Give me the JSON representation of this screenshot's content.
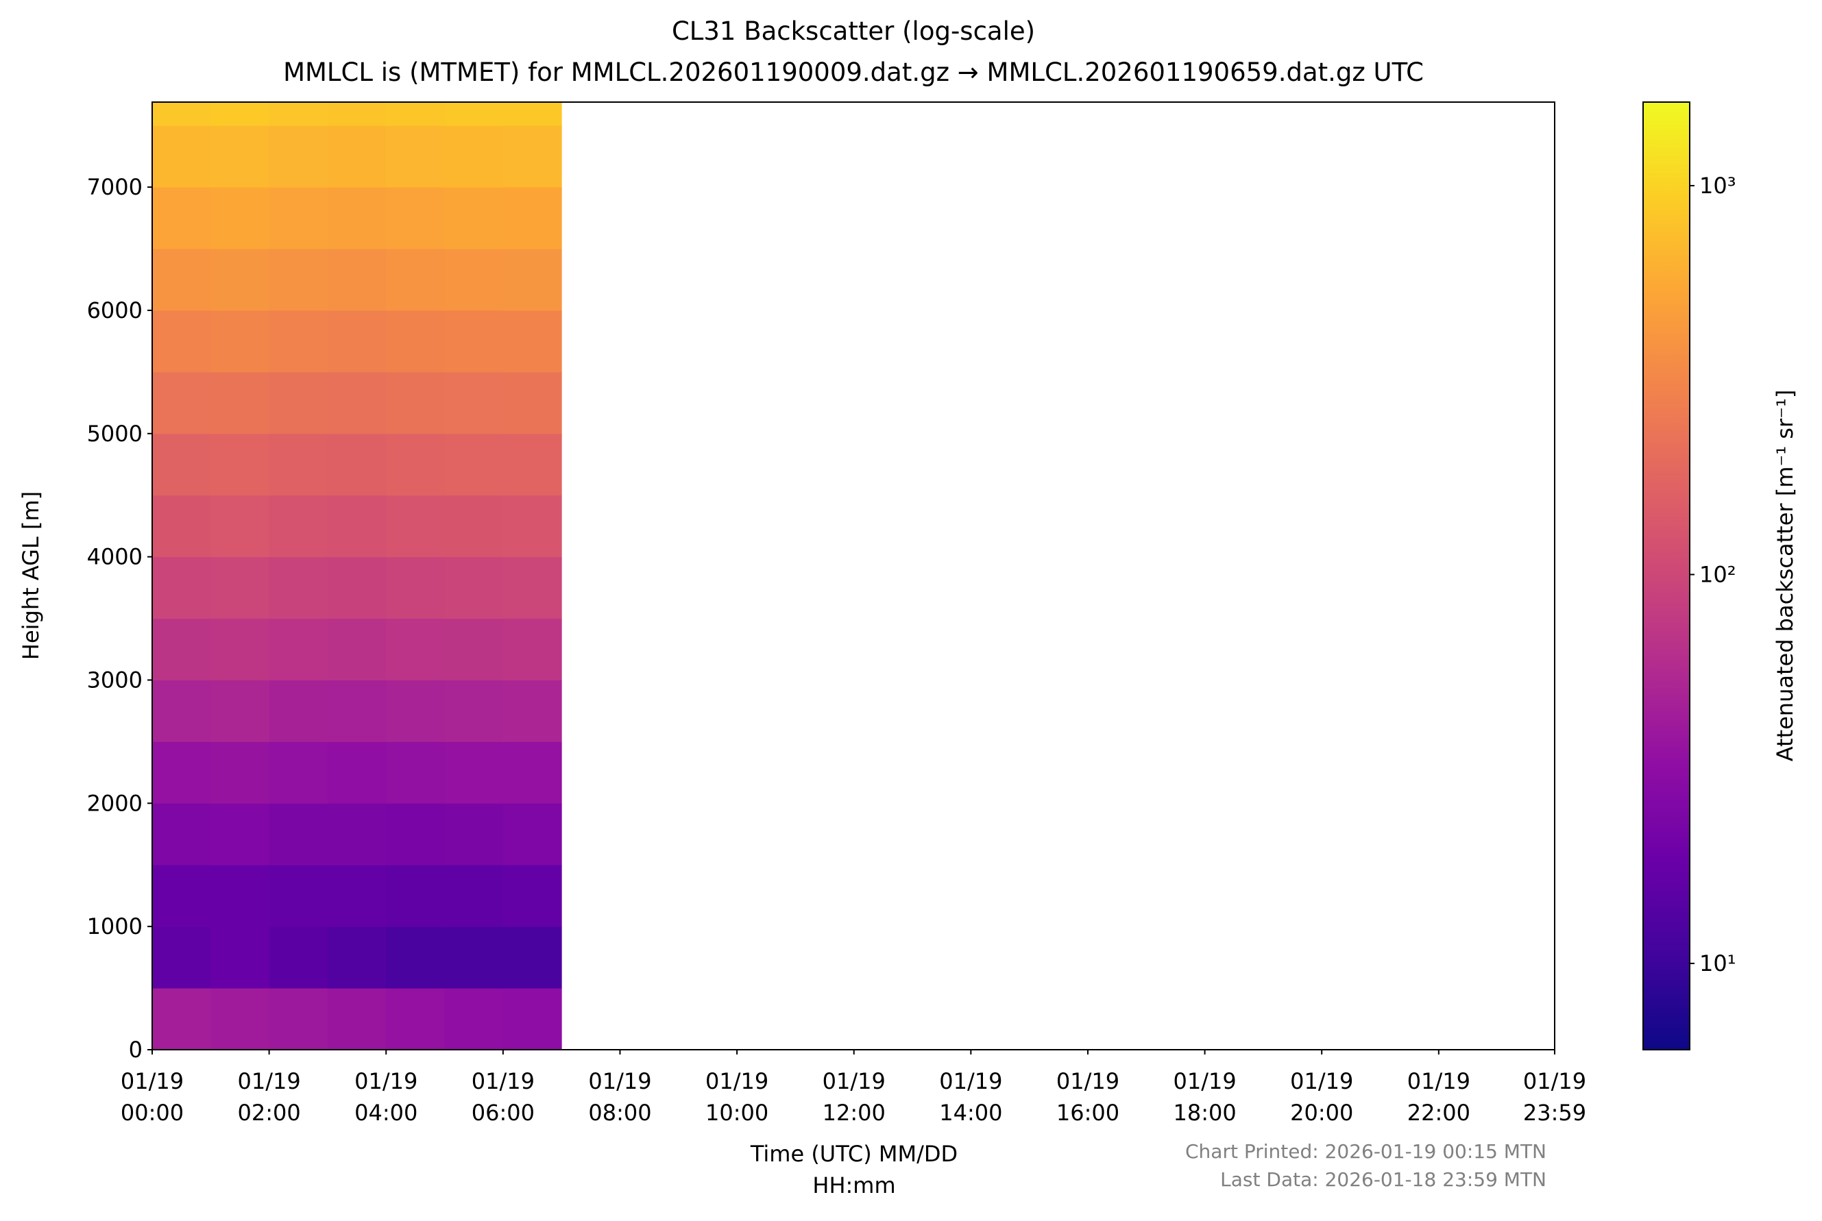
{
  "chart_data": {
    "type": "heatmap",
    "title": "CL31 Backscatter (log-scale)",
    "subtitle": "MMLCL is (MTMET) for MMLCL.202601190009.dat.gz → MMLCL.202601190659.dat.gz UTC",
    "xlabel": [
      "Time (UTC) MM/DD",
      "HH:mm"
    ],
    "ylabel": "Height AGL [m]",
    "colorbar_label": "Attenuated backscatter [m⁻¹ sr⁻¹]",
    "colormap": "plasma",
    "color_scale": "log",
    "clim": [
      6,
      1640
    ],
    "cticks": [
      {
        "value": 10,
        "label": "10¹"
      },
      {
        "value": 100,
        "label": "10²"
      },
      {
        "value": 1000,
        "label": "10³"
      }
    ],
    "xlim": [
      0,
      23.983
    ],
    "xticks": [
      {
        "value": 0,
        "label": [
          "01/19",
          "00:00"
        ]
      },
      {
        "value": 2,
        "label": [
          "01/19",
          "02:00"
        ]
      },
      {
        "value": 4,
        "label": [
          "01/19",
          "04:00"
        ]
      },
      {
        "value": 6,
        "label": [
          "01/19",
          "06:00"
        ]
      },
      {
        "value": 8,
        "label": [
          "01/19",
          "08:00"
        ]
      },
      {
        "value": 10,
        "label": [
          "01/19",
          "10:00"
        ]
      },
      {
        "value": 12,
        "label": [
          "01/19",
          "12:00"
        ]
      },
      {
        "value": 14,
        "label": [
          "01/19",
          "14:00"
        ]
      },
      {
        "value": 16,
        "label": [
          "01/19",
          "16:00"
        ]
      },
      {
        "value": 18,
        "label": [
          "01/19",
          "18:00"
        ]
      },
      {
        "value": 20,
        "label": [
          "01/19",
          "20:00"
        ]
      },
      {
        "value": 22,
        "label": [
          "01/19",
          "22:00"
        ]
      },
      {
        "value": 23.983,
        "label": [
          "01/19",
          "23:59"
        ]
      }
    ],
    "ylim": [
      0,
      7690
    ],
    "yticks": [
      0,
      1000,
      2000,
      3000,
      4000,
      5000,
      6000,
      7000
    ],
    "x_bins": [
      0,
      1,
      2,
      3,
      4,
      5,
      6,
      7
    ],
    "y_bins": [
      0,
      500,
      1000,
      1500,
      2000,
      2500,
      3000,
      3500,
      4000,
      4500,
      5000,
      5500,
      6000,
      6500,
      7000,
      7500,
      7690
    ],
    "z": [
      [
        45,
        42,
        40,
        38,
        35,
        33,
        32
      ],
      [
        16,
        18,
        15,
        13,
        12,
        12,
        12
      ],
      [
        18,
        18,
        17,
        17,
        16,
        16,
        17
      ],
      [
        25,
        26,
        24,
        24,
        23,
        24,
        25
      ],
      [
        35,
        36,
        34,
        33,
        34,
        35,
        35
      ],
      [
        50,
        52,
        48,
        47,
        49,
        50,
        51
      ],
      [
        70,
        72,
        68,
        66,
        69,
        70,
        72
      ],
      [
        95,
        98,
        92,
        90,
        94,
        96,
        97
      ],
      [
        130,
        135,
        125,
        122,
        128,
        130,
        132
      ],
      [
        170,
        175,
        165,
        160,
        168,
        172,
        174
      ],
      [
        230,
        235,
        222,
        218,
        226,
        230,
        233
      ],
      [
        300,
        310,
        290,
        285,
        296,
        302,
        305
      ],
      [
        400,
        410,
        390,
        380,
        395,
        402,
        408
      ],
      [
        520,
        530,
        505,
        495,
        512,
        522,
        528
      ],
      [
        680,
        690,
        660,
        650,
        670,
        682,
        688
      ],
      [
        850,
        870,
        830,
        815,
        840,
        855,
        862
      ]
    ],
    "footer": [
      "Chart Printed: 2026-01-19 00:15 MTN",
      "Last Data: 2026-01-18 23:59 MTN"
    ]
  }
}
